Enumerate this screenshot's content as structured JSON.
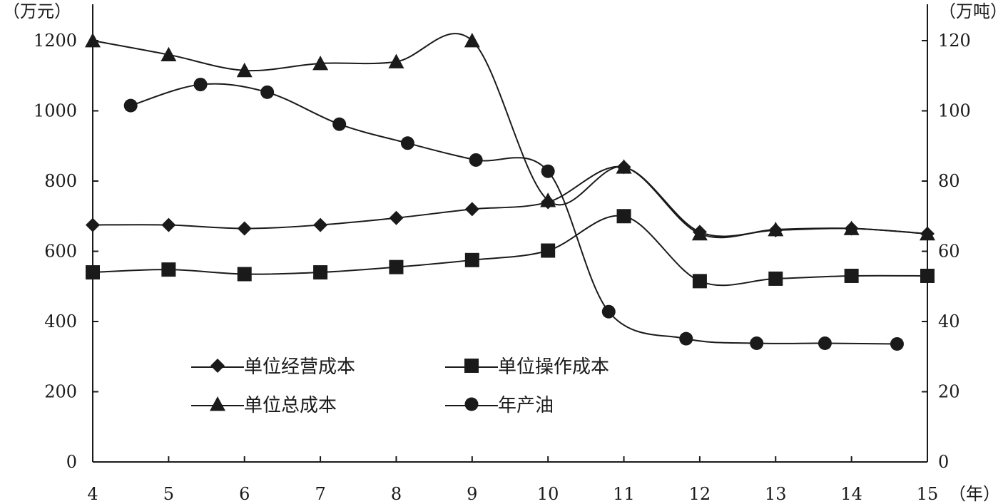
{
  "chart_data": {
    "type": "line",
    "left_unit": "（万元）",
    "right_unit": "（万吨）",
    "x_unit": "（年）",
    "x": [
      4,
      5,
      6,
      7,
      8,
      9,
      10,
      11,
      12,
      13,
      14,
      15
    ],
    "xlim": [
      4,
      15
    ],
    "y_left_lim": [
      0,
      1200
    ],
    "y_right_lim": [
      0,
      120
    ],
    "y_left_ticks": [
      0,
      200,
      400,
      600,
      800,
      1000,
      1200
    ],
    "y_right_ticks": [
      0,
      20,
      40,
      60,
      80,
      100,
      120
    ],
    "legend_position": "bottom-left",
    "series": [
      {
        "name": "单位经营成本",
        "marker": "diamond",
        "axis": "left",
        "points": [
          [
            4,
            675
          ],
          [
            5,
            675
          ],
          [
            6,
            665
          ],
          [
            7,
            675
          ],
          [
            8,
            695
          ],
          [
            9,
            720
          ],
          [
            10,
            740
          ],
          [
            11,
            840
          ],
          [
            12,
            655
          ],
          [
            13,
            660
          ],
          [
            14,
            665
          ],
          [
            15,
            650
          ]
        ]
      },
      {
        "name": "单位操作成本",
        "marker": "square",
        "axis": "left",
        "points": [
          [
            4,
            540
          ],
          [
            5,
            548
          ],
          [
            6,
            535
          ],
          [
            7,
            540
          ],
          [
            8,
            555
          ],
          [
            9,
            575
          ],
          [
            10,
            602
          ],
          [
            11,
            700
          ],
          [
            12,
            515
          ],
          [
            13,
            522
          ],
          [
            14,
            530
          ],
          [
            15,
            530
          ]
        ]
      },
      {
        "name": "单位总成本",
        "marker": "triangle",
        "axis": "left",
        "points": [
          [
            4,
            1200
          ],
          [
            5,
            1160
          ],
          [
            6,
            1115
          ],
          [
            7,
            1135
          ],
          [
            8,
            1140
          ],
          [
            9,
            1200
          ],
          [
            10,
            745
          ],
          [
            11,
            840
          ],
          [
            12,
            650
          ],
          [
            13,
            662
          ],
          [
            14,
            665
          ],
          [
            15,
            650
          ]
        ]
      },
      {
        "name": "年产油",
        "marker": "circle",
        "axis": "right",
        "points": [
          [
            4.5,
            101.5
          ],
          [
            5.42,
            107.5
          ],
          [
            6.3,
            105.3
          ],
          [
            7.25,
            96.2
          ],
          [
            8.15,
            90.8
          ],
          [
            9.05,
            86.0
          ],
          [
            10.0,
            82.8
          ],
          [
            10.8,
            42.8
          ],
          [
            11.82,
            35.1
          ],
          [
            12.75,
            33.8
          ],
          [
            13.65,
            33.8
          ],
          [
            14.6,
            33.6
          ]
        ]
      }
    ]
  }
}
